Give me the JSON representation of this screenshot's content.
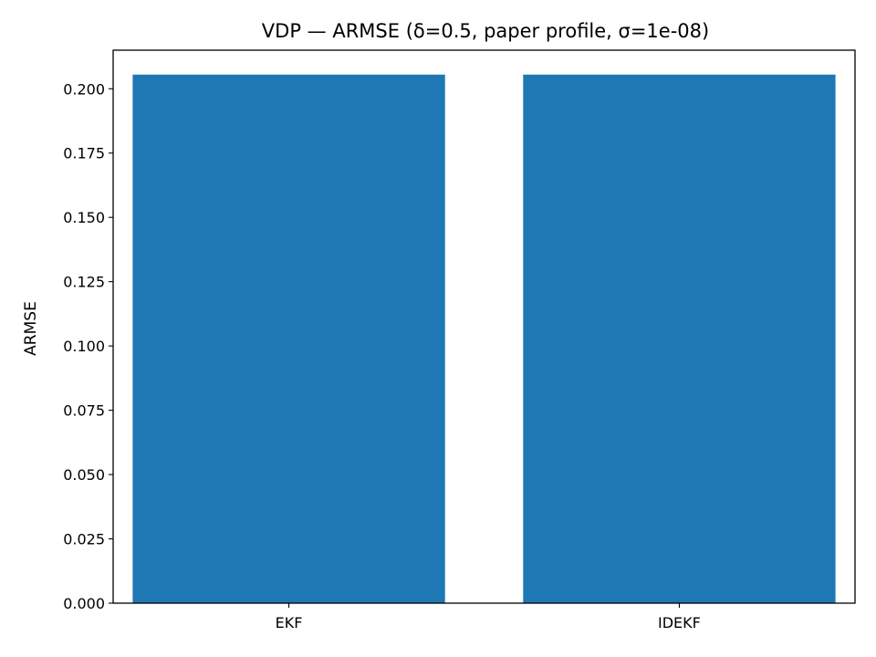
{
  "chart_data": {
    "type": "bar",
    "title": "VDP — ARMSE (δ=0.5, paper profile, σ=1e-08)",
    "xlabel": "",
    "ylabel": "ARMSE",
    "categories": [
      "EKF",
      "IDEKF"
    ],
    "values": [
      0.2055,
      0.2055
    ],
    "ylim": [
      0,
      0.215
    ],
    "yticks": [
      0.0,
      0.025,
      0.05,
      0.075,
      0.1,
      0.125,
      0.15,
      0.175,
      0.2
    ],
    "ytick_labels": [
      "0.000",
      "0.025",
      "0.050",
      "0.075",
      "0.100",
      "0.125",
      "0.150",
      "0.175",
      "0.200"
    ],
    "bar_color": "#1f77b4",
    "grid": false,
    "legend": "none"
  }
}
